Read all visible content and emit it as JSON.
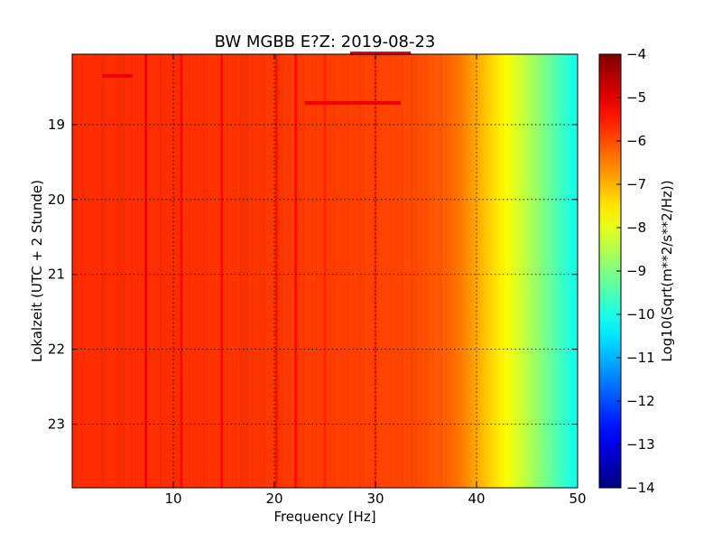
{
  "chart_data": {
    "type": "heatmap",
    "title": "BW MGBB E?Z: 2019-08-23",
    "xlabel": "Frequency [Hz]",
    "ylabel": "Lokalzeit (UTC + 2 Stunde)",
    "xlim": [
      0,
      50
    ],
    "ylim": [
      18.06,
      23.85
    ],
    "y_inverted": true,
    "x_ticks": [
      "10",
      "20",
      "30",
      "40",
      "50"
    ],
    "x_tick_values": [
      10,
      20,
      30,
      40,
      50
    ],
    "y_ticks": [
      "19",
      "20",
      "21",
      "22",
      "23"
    ],
    "y_tick_values": [
      19,
      20,
      21,
      22,
      23
    ],
    "grid": true,
    "colormap": "jet",
    "colorbar": {
      "label": "Log10(Sqrt(m**2/s**2/Hz))",
      "range": [
        -14,
        -4
      ],
      "ticks": [
        "−4",
        "−5",
        "−6",
        "−7",
        "−8",
        "−9",
        "−10",
        "−11",
        "−12",
        "−13",
        "−14"
      ],
      "tick_values": [
        -4,
        -5,
        -6,
        -7,
        -8,
        -9,
        -10,
        -11,
        -12,
        -13,
        -14
      ]
    },
    "frequency_profile": {
      "x": [
        0,
        5,
        10,
        15,
        20,
        25,
        30,
        33,
        35,
        37,
        38,
        39,
        40,
        41,
        42,
        43,
        44,
        45,
        46,
        47,
        48,
        49,
        50
      ],
      "values": [
        -5.7,
        -5.7,
        -5.7,
        -5.75,
        -5.8,
        -5.85,
        -5.9,
        -5.95,
        -6.05,
        -6.2,
        -6.35,
        -6.6,
        -6.9,
        -7.2,
        -7.5,
        -7.8,
        -8.1,
        -8.45,
        -8.8,
        -9.15,
        -9.5,
        -9.85,
        -10.1
      ]
    },
    "spectral_lines": [
      {
        "frequency": 7.3,
        "level": -5.0
      },
      {
        "frequency": 10.8,
        "level": -5.3
      },
      {
        "frequency": 14.8,
        "level": -5.3
      },
      {
        "frequency": 20.2,
        "level": -5.4
      },
      {
        "frequency": 22.1,
        "level": -5.3
      },
      {
        "frequency": 25.0,
        "level": -5.6
      },
      {
        "frequency": 30.0,
        "level": -5.6
      }
    ],
    "horizontal_events": [
      {
        "time": 18.05,
        "x_start": 27.5,
        "x_end": 33.5,
        "level": -4.9
      },
      {
        "time": 18.71,
        "x_start": 23.0,
        "x_end": 32.5,
        "level": -5.1
      },
      {
        "time": 18.35,
        "x_start": 3.0,
        "x_end": 6.0,
        "level": -5.1
      }
    ]
  }
}
